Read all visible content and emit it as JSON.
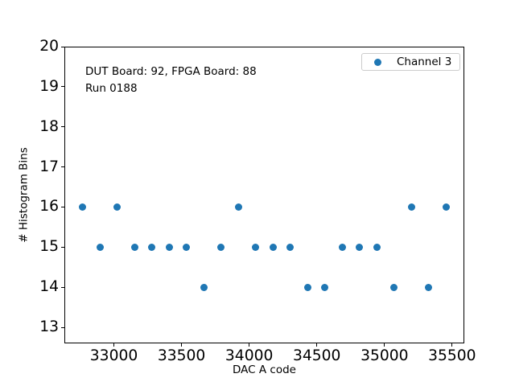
{
  "figure": {
    "background": "#ffffff",
    "spine_color": "#000000",
    "legend_border_color": "#cccccc"
  },
  "legend": {
    "label": "Channel 3",
    "marker_color": "#1f77b4",
    "marker_icon": "filled-circle"
  },
  "chart_data": {
    "type": "scatter",
    "title": "",
    "xlabel": "DAC A code",
    "ylabel": "# Histogram Bins",
    "annotations": [
      "DUT Board: 92, FPGA Board: 88",
      "Run 0188"
    ],
    "series": [
      {
        "name": "Channel 3",
        "color": "#1f77b4",
        "marker": "circle",
        "x": [
          32768,
          32896,
          33024,
          33152,
          33280,
          33408,
          33536,
          33664,
          33792,
          33920,
          34048,
          34176,
          34304,
          34432,
          34560,
          34688,
          34816,
          34944,
          35072,
          35200,
          35328,
          35456
        ],
        "y": [
          16,
          15,
          16,
          15,
          15,
          15,
          15,
          14,
          15,
          16,
          15,
          15,
          15,
          14,
          14,
          15,
          15,
          15,
          14,
          16,
          14,
          16
        ]
      }
    ],
    "xlim": [
      32634,
      35590
    ],
    "ylim": [
      12.6,
      20.0
    ],
    "xticks": [
      33000,
      33500,
      34000,
      34500,
      35000,
      35500
    ],
    "yticks": [
      13,
      14,
      15,
      16,
      17,
      18,
      19,
      20
    ],
    "grid": false,
    "legend_position": "upper right"
  }
}
